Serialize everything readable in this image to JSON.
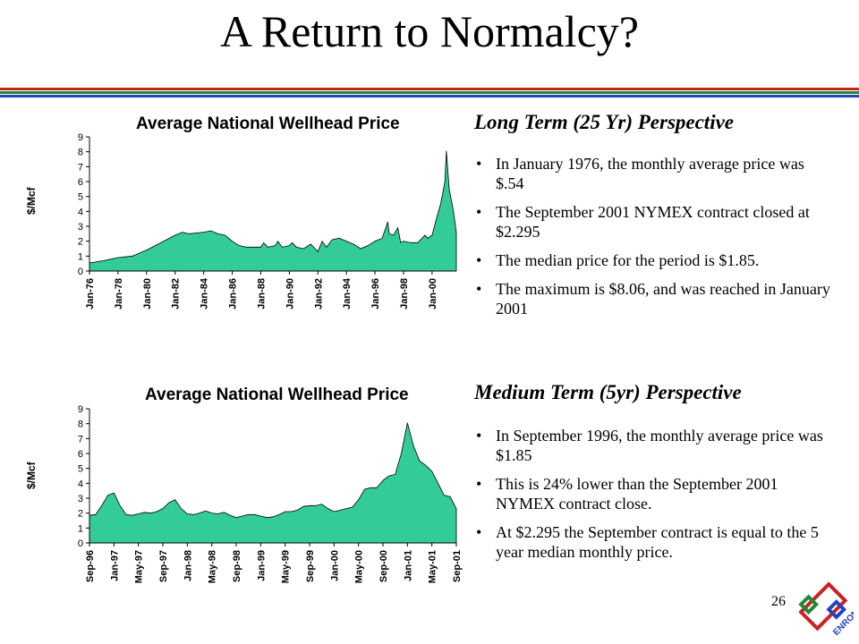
{
  "slide": {
    "title": "A Return to Normalcy?",
    "page_number": "26",
    "logo_text": "ENRON"
  },
  "colors": {
    "area_fill": "#33cc99",
    "rule_red": "#cc2222",
    "rule_green": "#228833",
    "rule_blue": "#2244bb"
  },
  "long_term": {
    "heading": "Long Term (25 Yr) Perspective",
    "bullets": [
      "In January 1976, the monthly average price was $.54",
      "The September 2001 NYMEX contract closed at $2.295",
      "The median price for the period is $1.85.",
      "The maximum is $8.06, and was reached in January 2001"
    ]
  },
  "medium_term": {
    "heading": "Medium Term (5yr) Perspective",
    "bullets": [
      "In September 1996, the monthly average price was $1.85",
      "This is 24% lower than the September 2001 NYMEX contract close.",
      "At $2.295 the September contract is equal to the 5 year median monthly price."
    ]
  },
  "chart_data": [
    {
      "type": "area",
      "title": "Average National Wellhead Price",
      "ylabel": "$/Mcf",
      "xlabel": "",
      "ylim": [
        0,
        9
      ],
      "yticks": [
        0,
        1,
        2,
        3,
        4,
        5,
        6,
        7,
        8,
        9
      ],
      "xtick_labels": [
        "Jan-76",
        "Jan-78",
        "Jan-80",
        "Jan-82",
        "Jan-84",
        "Jan-86",
        "Jan-88",
        "Jan-90",
        "Jan-92",
        "Jan-94",
        "Jan-96",
        "Jan-98",
        "Jan-00"
      ],
      "xtick_values": [
        1976,
        1978,
        1980,
        1982,
        1984,
        1986,
        1988,
        1990,
        1992,
        1994,
        1996,
        1998,
        2000
      ],
      "xlim": [
        1976.0,
        2001.7
      ],
      "grid": false,
      "x": [
        1976.0,
        1977.0,
        1978.0,
        1979.0,
        1980.0,
        1981.0,
        1982.0,
        1982.5,
        1983.0,
        1984.0,
        1984.5,
        1985.0,
        1985.5,
        1986.0,
        1986.5,
        1987.0,
        1988.0,
        1988.2,
        1988.5,
        1989.0,
        1989.2,
        1989.5,
        1990.0,
        1990.2,
        1990.5,
        1991.0,
        1991.5,
        1992.0,
        1992.3,
        1992.6,
        1993.0,
        1993.5,
        1994.0,
        1994.5,
        1995.0,
        1995.5,
        1996.0,
        1996.5,
        1996.9,
        1997.0,
        1997.3,
        1997.6,
        1997.8,
        1998.0,
        1998.5,
        1999.0,
        1999.5,
        1999.7,
        2000.0,
        2000.3,
        2000.6,
        2000.9,
        2001.0,
        2001.2,
        2001.5,
        2001.7
      ],
      "y": [
        0.54,
        0.7,
        0.9,
        1.0,
        1.4,
        1.9,
        2.4,
        2.6,
        2.5,
        2.6,
        2.7,
        2.5,
        2.4,
        2.0,
        1.7,
        1.6,
        1.6,
        1.9,
        1.6,
        1.7,
        2.0,
        1.6,
        1.7,
        1.9,
        1.6,
        1.5,
        1.8,
        1.3,
        2.0,
        1.6,
        2.1,
        2.2,
        2.0,
        1.8,
        1.5,
        1.7,
        2.0,
        2.2,
        3.3,
        2.5,
        2.4,
        2.9,
        1.9,
        2.0,
        1.9,
        1.9,
        2.4,
        2.2,
        2.4,
        3.5,
        4.5,
        6.0,
        8.06,
        5.5,
        4.0,
        2.6
      ]
    },
    {
      "type": "area",
      "title": "Average National Wellhead Price",
      "ylabel": "$/Mcf",
      "xlabel": "",
      "ylim": [
        0,
        9
      ],
      "yticks": [
        0,
        1,
        2,
        3,
        4,
        5,
        6,
        7,
        8,
        9
      ],
      "xtick_labels": [
        "Sep-96",
        "Jan-97",
        "May-97",
        "Sep-97",
        "Jan-98",
        "May-98",
        "Sep-98",
        "Jan-99",
        "May-99",
        "Sep-99",
        "Jan-00",
        "May-00",
        "Sep-00",
        "Jan-01",
        "May-01",
        "Sep-01"
      ],
      "xtick_values": [
        0,
        4,
        8,
        12,
        16,
        20,
        24,
        28,
        32,
        36,
        40,
        44,
        48,
        52,
        56,
        60
      ],
      "xlim": [
        0,
        60
      ],
      "grid": false,
      "x": [
        0,
        1,
        2,
        3,
        4,
        5,
        6,
        7,
        8,
        9,
        10,
        11,
        12,
        13,
        14,
        15,
        16,
        17,
        18,
        19,
        20,
        21,
        22,
        23,
        24,
        25,
        26,
        27,
        28,
        29,
        30,
        31,
        32,
        33,
        34,
        35,
        36,
        37,
        38,
        39,
        40,
        41,
        42,
        43,
        44,
        45,
        46,
        47,
        48,
        49,
        50,
        51,
        52,
        53,
        54,
        55,
        56,
        57,
        58,
        59,
        60
      ],
      "y": [
        1.85,
        1.9,
        2.5,
        3.2,
        3.35,
        2.5,
        1.9,
        1.85,
        1.95,
        2.05,
        2.0,
        2.1,
        2.3,
        2.7,
        2.9,
        2.3,
        1.95,
        1.9,
        2.0,
        2.15,
        2.0,
        1.95,
        2.05,
        1.85,
        1.7,
        1.8,
        1.9,
        1.9,
        1.8,
        1.7,
        1.75,
        1.9,
        2.1,
        2.1,
        2.2,
        2.45,
        2.5,
        2.5,
        2.6,
        2.3,
        2.1,
        2.2,
        2.3,
        2.4,
        2.9,
        3.6,
        3.7,
        3.7,
        4.2,
        4.5,
        4.6,
        6.0,
        8.06,
        6.5,
        5.5,
        5.2,
        4.8,
        4.0,
        3.2,
        3.1,
        2.3
      ]
    }
  ]
}
